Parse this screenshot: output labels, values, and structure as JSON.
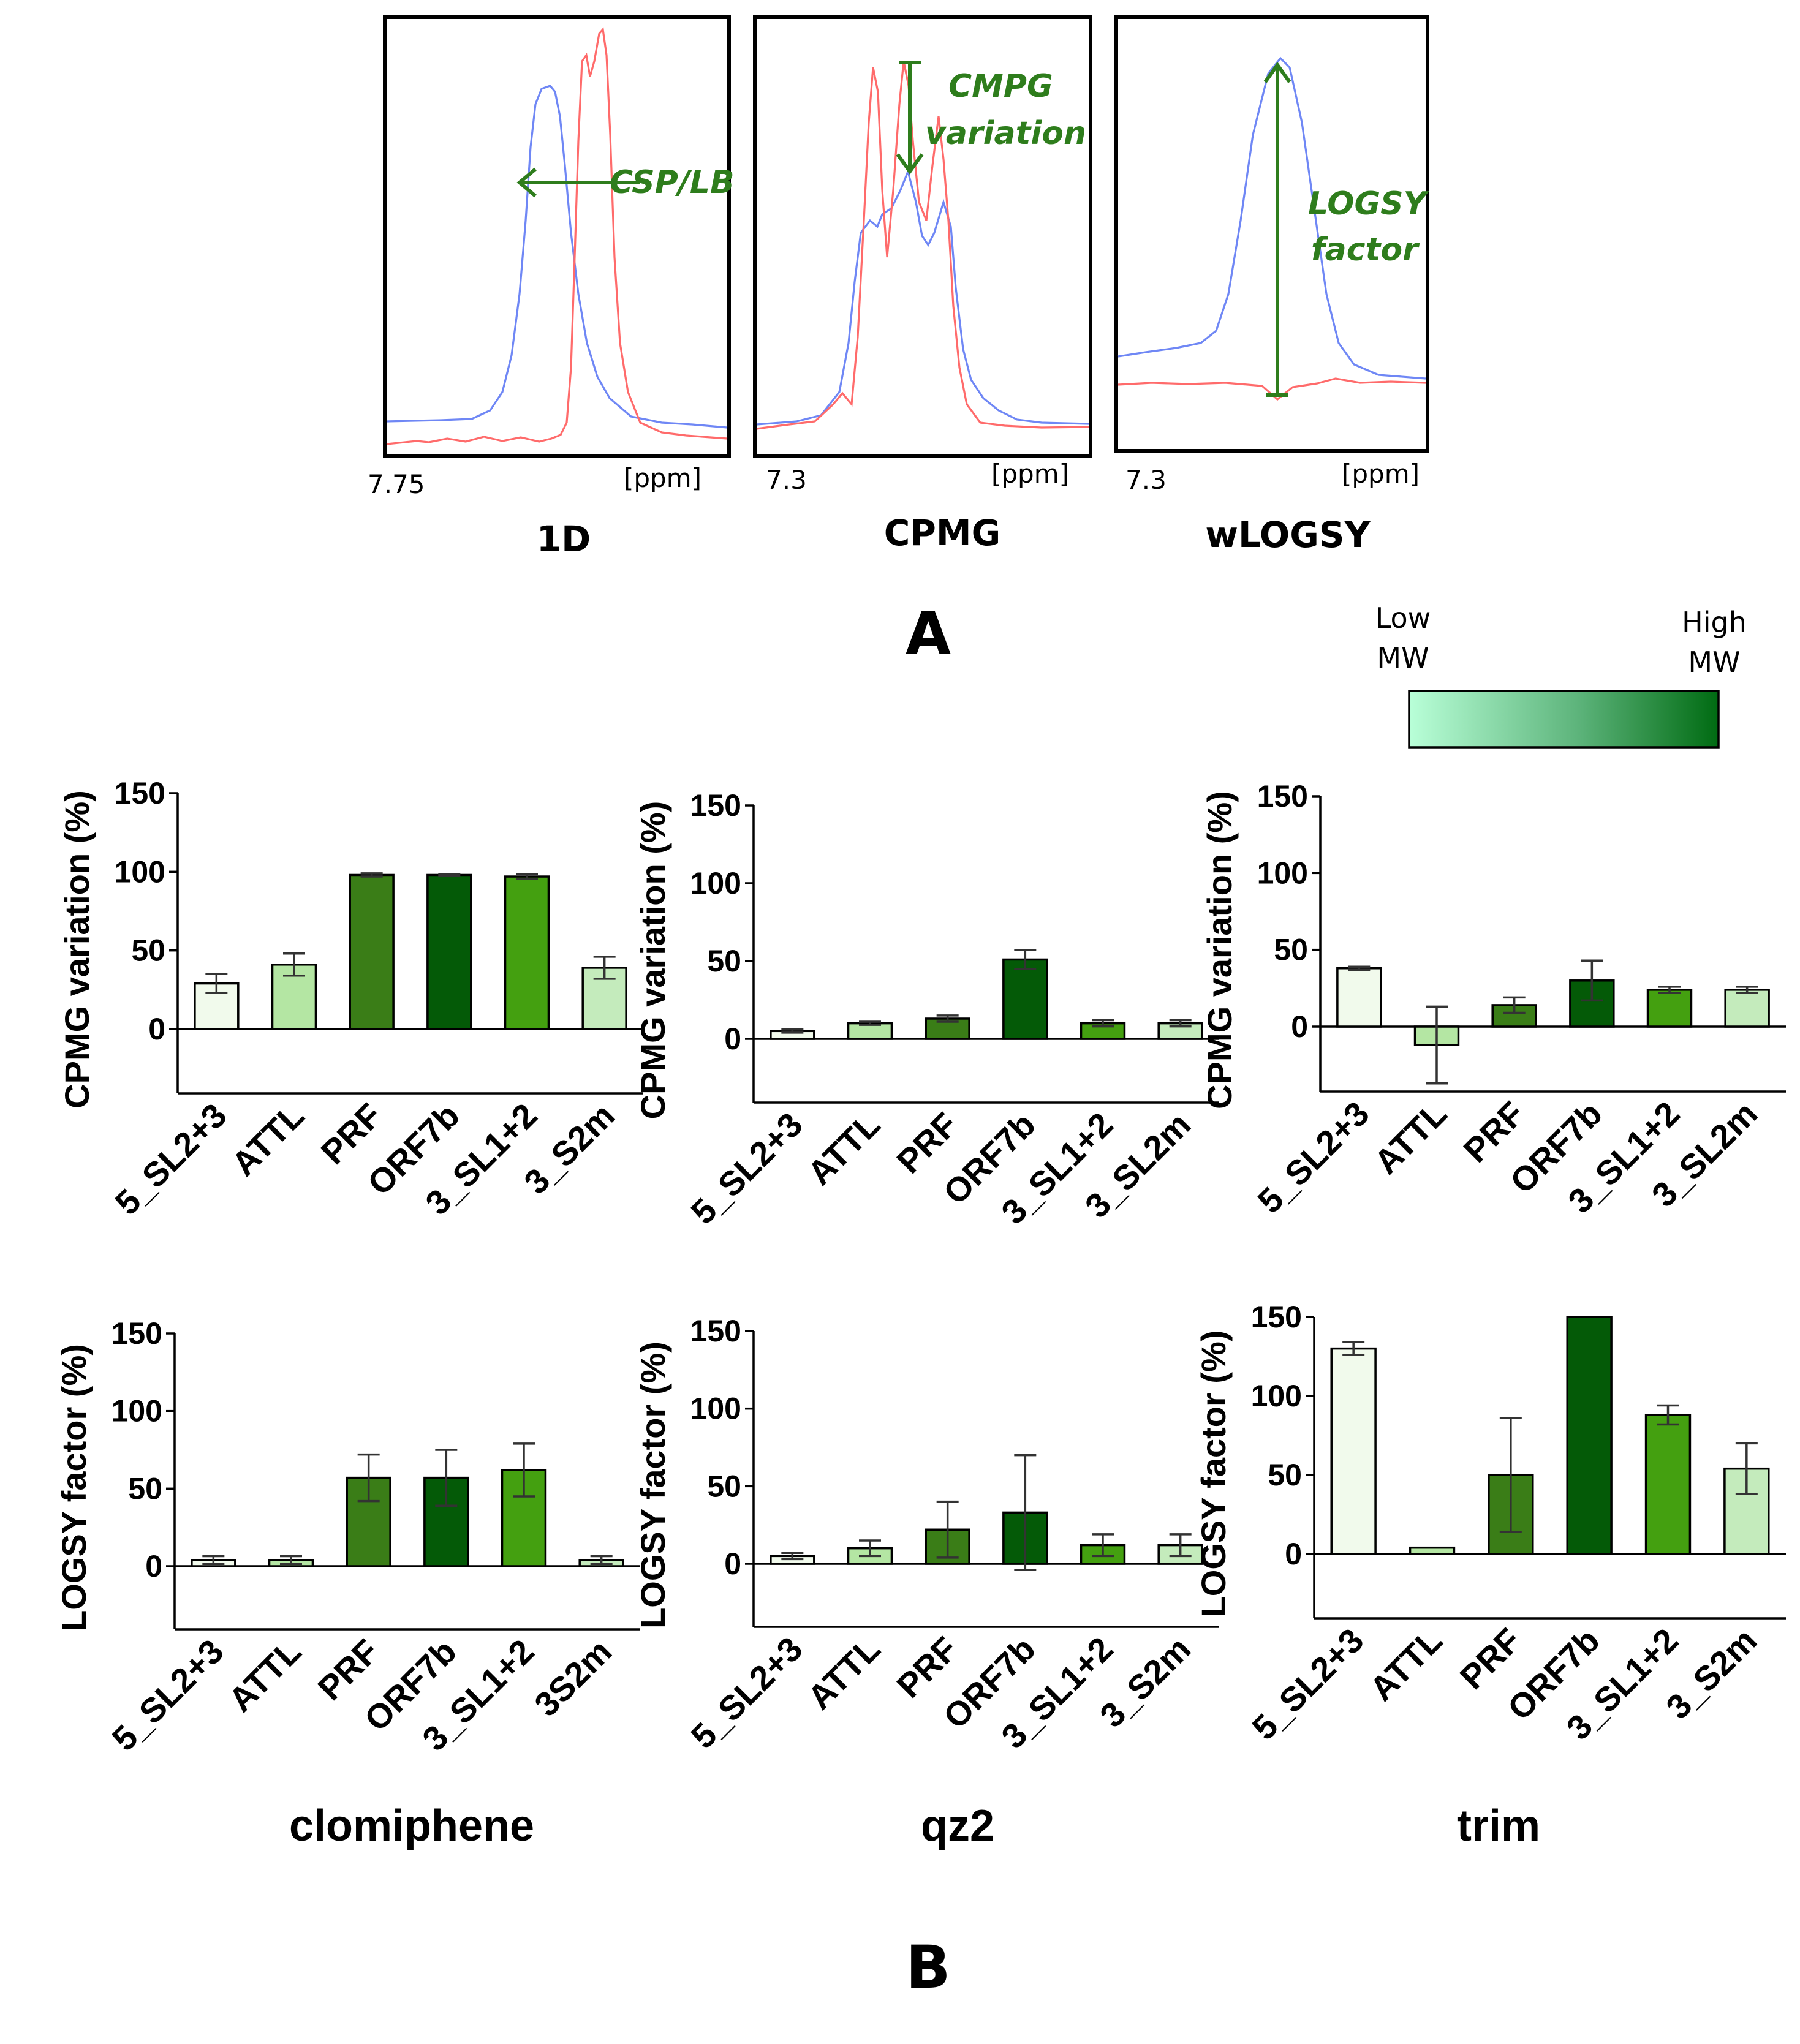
{
  "panel_a": {
    "label": "A",
    "panels": [
      {
        "title": "1D",
        "x_start": "7.75",
        "x_unit": "[ppm]",
        "annotation": [
          "CSP/LB"
        ]
      },
      {
        "title": "CPMG",
        "x_start": "7.3",
        "x_unit": "[ppm]",
        "annotation": [
          "CMPG",
          "variation"
        ]
      },
      {
        "title": "wLOGSY",
        "x_start": "7.3",
        "x_unit": "[ppm]",
        "annotation": [
          "LOGSY",
          "factor"
        ]
      }
    ],
    "colors": {
      "blue": "#6f87f5",
      "red": "#ff6b6b",
      "annotation": "#2e7d1c"
    }
  },
  "panel_b": {
    "label": "B",
    "legend": {
      "low": [
        "Low",
        "MW"
      ],
      "high": [
        "High",
        "MW"
      ],
      "gradient": [
        "#b9ffd8",
        "#5cb37a",
        "#006b12"
      ]
    },
    "compounds": [
      "clomiphene",
      "qz2",
      "trim"
    ],
    "bar_colors": [
      "#f1faec",
      "#b4e6a3",
      "#3a7d17",
      "#045a07",
      "#44a010",
      "#c4ebbc"
    ]
  },
  "chart_data": [
    {
      "type": "bar",
      "title": "clomiphene",
      "ylabel": "CPMG variation (%)",
      "ylim": [
        -40,
        150
      ],
      "yticks": [
        "150",
        "100",
        "50",
        "0"
      ],
      "categories": [
        "5_SL2+3",
        "ATTL",
        "PRF",
        "ORF7b",
        "3_SL1+2",
        "3_S2m"
      ],
      "values": [
        29,
        41,
        98,
        98,
        97,
        39
      ],
      "errors": [
        6,
        7,
        1,
        0.5,
        1.5,
        7
      ]
    },
    {
      "type": "bar",
      "title": "qz2",
      "ylabel": "CPMG variation (%)",
      "ylim": [
        -40,
        150
      ],
      "yticks": [
        "150",
        "100",
        "50",
        "0"
      ],
      "categories": [
        "5_SL2+3",
        "ATTL",
        "PRF",
        "ORF7b",
        "3_SL1+2",
        "3_SL2m"
      ],
      "values": [
        5,
        10,
        13,
        51,
        10,
        10
      ],
      "errors": [
        1,
        1,
        2,
        6,
        2,
        2
      ]
    },
    {
      "type": "bar",
      "title": "trim",
      "ylabel": "CPMG variation (%)",
      "ylim": [
        -40,
        150
      ],
      "yticks": [
        "150",
        "100",
        "50",
        "0"
      ],
      "categories": [
        "5_SL2+3",
        "ATTL",
        "PRF",
        "ORF7b",
        "3_SL1+2",
        "3_SL2m"
      ],
      "values": [
        38,
        -12,
        14,
        30,
        24,
        24
      ],
      "errors": [
        1,
        25,
        5,
        13,
        2,
        2
      ]
    },
    {
      "type": "bar",
      "title": "clomiphene",
      "ylabel": "LOGSY factor (%)",
      "ylim": [
        -40,
        150
      ],
      "yticks": [
        "150",
        "100",
        "50",
        "0"
      ],
      "categories": [
        "5_SL2+3",
        "ATTL",
        "PRF",
        "ORF7b",
        "3_SL1+2",
        "3S2m"
      ],
      "values": [
        4,
        4,
        57,
        57,
        62,
        4
      ],
      "errors": [
        2.5,
        2.5,
        15,
        18,
        17,
        2.5
      ]
    },
    {
      "type": "bar",
      "title": "qz2",
      "ylabel": "LOGSY factor (%)",
      "ylim": [
        -40,
        150
      ],
      "yticks": [
        "150",
        "100",
        "50",
        "0"
      ],
      "categories": [
        "5_SL2+3",
        "ATTL",
        "PRF",
        "ORF7b",
        "3_SL1+2",
        "3_S2m"
      ],
      "values": [
        5,
        10,
        22,
        33,
        12,
        12
      ],
      "errors": [
        2,
        5,
        18,
        37,
        7,
        7
      ]
    },
    {
      "type": "bar",
      "title": "trim",
      "ylabel": "LOGSY factor (%)",
      "ylim": [
        -40,
        150
      ],
      "yticks": [
        "150",
        "100",
        "50",
        "0"
      ],
      "categories": [
        "5_SL2+3",
        "ATTL",
        "PRF",
        "ORF7b",
        "3_SL1+2",
        "3_S2m"
      ],
      "values": [
        130,
        4,
        50,
        150,
        88,
        54
      ],
      "errors": [
        4,
        0,
        36,
        0,
        6,
        16
      ]
    }
  ]
}
